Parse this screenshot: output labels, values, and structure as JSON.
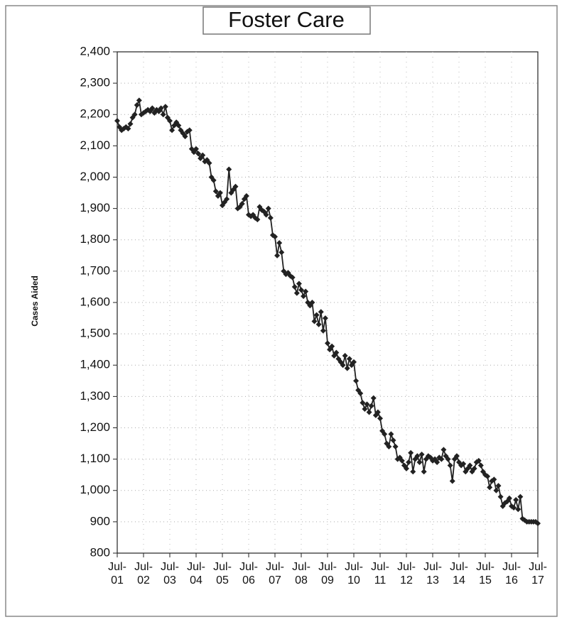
{
  "chart_data": {
    "type": "line",
    "title": "Foster Care",
    "y_label": "Cases Aided",
    "categories": [
      "Jul-01",
      null,
      null,
      null,
      null,
      null,
      null,
      null,
      null,
      null,
      null,
      null,
      "Jul-02",
      null,
      null,
      null,
      null,
      null,
      null,
      null,
      null,
      null,
      null,
      null,
      "Jul-03",
      null,
      null,
      null,
      null,
      null,
      null,
      null,
      null,
      null,
      null,
      null,
      "Jul-04",
      null,
      null,
      null,
      null,
      null,
      null,
      null,
      null,
      null,
      null,
      null,
      "Jul-05",
      null,
      null,
      null,
      null,
      null,
      null,
      null,
      null,
      null,
      null,
      null,
      "Jul-06",
      null,
      null,
      null,
      null,
      null,
      null,
      null,
      null,
      null,
      null,
      null,
      "Jul-07",
      null,
      null,
      null,
      null,
      null,
      null,
      null,
      null,
      null,
      null,
      null,
      "Jul-08",
      null,
      null,
      null,
      null,
      null,
      null,
      null,
      null,
      null,
      null,
      null,
      "Jul-09",
      null,
      null,
      null,
      null,
      null,
      null,
      null,
      null,
      null,
      null,
      null,
      "Jul-10",
      null,
      null,
      null,
      null,
      null,
      null,
      null,
      null,
      null,
      null,
      null,
      "Jul-11",
      null,
      null,
      null,
      null,
      null,
      null,
      null,
      null,
      null,
      null,
      null,
      "Jul-12",
      null,
      null,
      null,
      null,
      null,
      null,
      null,
      null,
      null,
      null,
      null,
      "Jul-13",
      null,
      null,
      null,
      null,
      null,
      null,
      null,
      null,
      null,
      null,
      null,
      "Jul-14",
      null,
      null,
      null,
      null,
      null,
      null,
      null,
      null,
      null,
      null,
      null,
      "Jul-15",
      null,
      null,
      null,
      null,
      null,
      null,
      null,
      null,
      null,
      null,
      null,
      "Jul-16",
      null,
      null,
      null,
      null,
      null,
      null,
      null,
      null,
      null,
      null,
      null,
      "Jul-17"
    ],
    "values": [
      2180,
      2160,
      2150,
      2155,
      2160,
      2155,
      2170,
      2190,
      2200,
      2230,
      2245,
      2200,
      2205,
      2210,
      2215,
      2210,
      2220,
      2205,
      2215,
      2210,
      2220,
      2200,
      2225,
      2190,
      2180,
      2150,
      2165,
      2175,
      2165,
      2150,
      2140,
      2130,
      2145,
      2150,
      2090,
      2080,
      2090,
      2075,
      2060,
      2070,
      2050,
      2055,
      2045,
      2000,
      1990,
      1955,
      1940,
      1950,
      1910,
      1920,
      1930,
      2025,
      1950,
      1960,
      1970,
      1900,
      1905,
      1915,
      1930,
      1940,
      1880,
      1875,
      1880,
      1870,
      1865,
      1905,
      1895,
      1890,
      1880,
      1900,
      1870,
      1815,
      1810,
      1750,
      1790,
      1760,
      1700,
      1690,
      1695,
      1685,
      1680,
      1650,
      1630,
      1660,
      1640,
      1620,
      1635,
      1600,
      1590,
      1600,
      1540,
      1560,
      1530,
      1570,
      1510,
      1550,
      1470,
      1450,
      1460,
      1430,
      1440,
      1420,
      1410,
      1400,
      1430,
      1390,
      1420,
      1400,
      1410,
      1350,
      1320,
      1310,
      1280,
      1260,
      1275,
      1250,
      1270,
      1295,
      1240,
      1250,
      1230,
      1190,
      1180,
      1150,
      1140,
      1180,
      1160,
      1140,
      1100,
      1105,
      1095,
      1080,
      1070,
      1090,
      1120,
      1060,
      1100,
      1110,
      1090,
      1115,
      1060,
      1100,
      1110,
      1105,
      1095,
      1100,
      1090,
      1105,
      1100,
      1130,
      1110,
      1100,
      1080,
      1030,
      1100,
      1110,
      1090,
      1080,
      1085,
      1060,
      1070,
      1080,
      1060,
      1070,
      1090,
      1095,
      1080,
      1060,
      1050,
      1045,
      1010,
      1030,
      1035,
      1000,
      1015,
      980,
      950,
      960,
      965,
      975,
      950,
      945,
      970,
      940,
      980,
      910,
      905,
      900,
      900,
      900,
      900,
      900,
      895
    ],
    "color": "#222222",
    "ylim": [
      800,
      2400
    ],
    "yticks": [
      800,
      900,
      {
        "value": 1000,
        "label": "1,000"
      },
      {
        "value": 1100,
        "label": "1,100"
      },
      {
        "value": 1200,
        "label": "1,200"
      },
      {
        "value": 1300,
        "label": "1,300"
      },
      {
        "value": 1400,
        "label": "1,400"
      },
      {
        "value": 1500,
        "label": "1,500"
      },
      {
        "value": 1600,
        "label": "1,600"
      },
      {
        "value": 1700,
        "label": "1,700"
      },
      {
        "value": 1800,
        "label": "1,800"
      },
      {
        "value": 1900,
        "label": "1,900"
      },
      {
        "value": 2000,
        "label": "2,000"
      },
      {
        "value": 2100,
        "label": "2,100"
      },
      {
        "value": 2200,
        "label": "2,200"
      },
      {
        "value": 2300,
        "label": "2,300"
      },
      {
        "value": 2400,
        "label": "2,400"
      }
    ],
    "grid": true
  }
}
